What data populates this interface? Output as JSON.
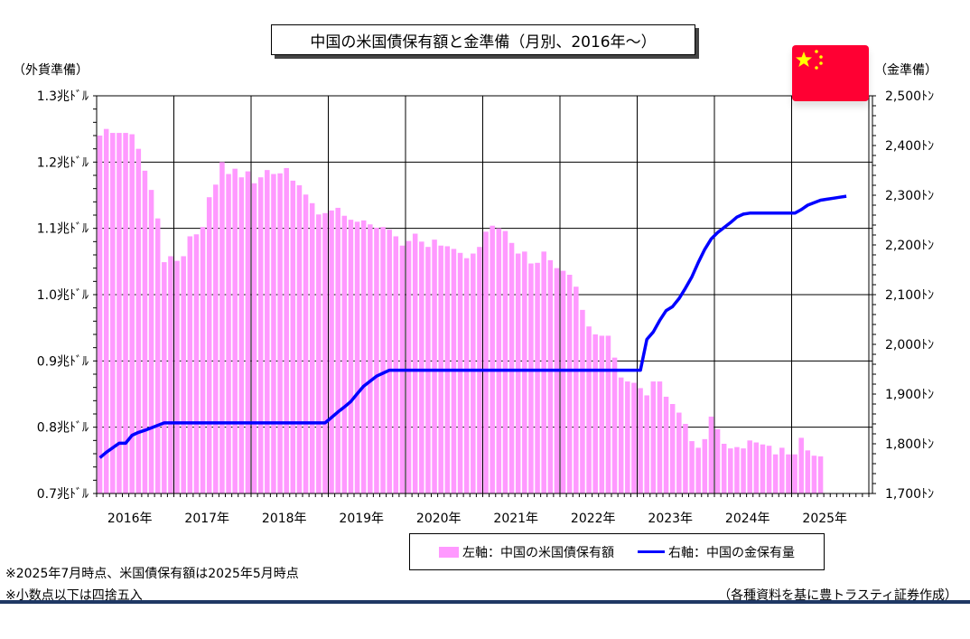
{
  "title": "中国の米国債保有額と金準備（月別、2016年～）",
  "left_axis_unit": "（外貨準備）",
  "right_axis_unit": "（金準備）",
  "legend": {
    "bar_label": "左軸：中国の米国債保有額",
    "line_label": "右軸：中国の金保有量"
  },
  "notes": [
    "※2025年7月時点、米国債保有額は2025年5月時点",
    "※小数点以下は四捨五入"
  ],
  "source": "（各種資料を基に豊トラスティ証券作成）",
  "colors": {
    "bar": "#FF99FF",
    "line": "#0000FF",
    "flag_red": "#FF0033",
    "flag_star": "#FFFF00",
    "rule": "#1F3864"
  },
  "flag_icon": "china-flag-icon",
  "chart_data": {
    "type": "bar",
    "grid": true,
    "x_categories": [
      "2016年",
      "2017年",
      "2018年",
      "2019年",
      "2020年",
      "2021年",
      "2022年",
      "2023年",
      "2024年",
      "2025年"
    ],
    "left_axis": {
      "ylim": [
        0.7,
        1.3
      ],
      "ticks": [
        0.7,
        0.8,
        0.9,
        1.0,
        1.1,
        1.2,
        1.3
      ],
      "tick_labels": [
        "0.7兆ﾄﾞﾙ",
        "0.8兆ﾄﾞﾙ",
        "0.9兆ﾄﾞﾙ",
        "1.0兆ﾄﾞﾙ",
        "1.1兆ﾄﾞﾙ",
        "1.2兆ﾄﾞﾙ",
        "1.3兆ﾄﾞﾙ"
      ]
    },
    "right_axis": {
      "ylim": [
        1700,
        2500
      ],
      "ticks": [
        1700,
        1800,
        1900,
        2000,
        2100,
        2200,
        2300,
        2400,
        2500
      ],
      "tick_labels": [
        "1,700ﾄﾝ",
        "1,800ﾄﾝ",
        "1,900ﾄﾝ",
        "2,000ﾄﾝ",
        "2,100ﾄﾝ",
        "2,200ﾄﾝ",
        "2,300ﾄﾝ",
        "2,400ﾄﾝ",
        "2,500ﾄﾝ"
      ]
    },
    "series": [
      {
        "name": "左軸：中国の米国債保有額",
        "type": "bar",
        "axis": "left",
        "start": "2016-01",
        "values": [
          1.24,
          1.25,
          1.244,
          1.244,
          1.244,
          1.242,
          1.22,
          1.187,
          1.158,
          1.115,
          1.049,
          1.058,
          1.051,
          1.058,
          1.088,
          1.091,
          1.102,
          1.147,
          1.166,
          1.2,
          1.182,
          1.19,
          1.177,
          1.186,
          1.168,
          1.177,
          1.188,
          1.182,
          1.183,
          1.191,
          1.172,
          1.165,
          1.151,
          1.138,
          1.121,
          1.123,
          1.127,
          1.131,
          1.119,
          1.113,
          1.11,
          1.112,
          1.106,
          1.101,
          1.102,
          1.098,
          1.088,
          1.074,
          1.081,
          1.092,
          1.08,
          1.072,
          1.083,
          1.074,
          1.073,
          1.069,
          1.063,
          1.055,
          1.062,
          1.072,
          1.095,
          1.104,
          1.1,
          1.096,
          1.078,
          1.062,
          1.065,
          1.047,
          1.048,
          1.065,
          1.052,
          1.04,
          1.036,
          1.03,
          1.012,
          0.977,
          0.952,
          0.94,
          0.938,
          0.938,
          0.905,
          0.875,
          0.869,
          0.867,
          0.859,
          0.848,
          0.869,
          0.869,
          0.846,
          0.835,
          0.822,
          0.805,
          0.779,
          0.769,
          0.782,
          0.816,
          0.797,
          0.775,
          0.768,
          0.77,
          0.768,
          0.78,
          0.777,
          0.774,
          0.772,
          0.759,
          0.769,
          0.759,
          0.759,
          0.784,
          0.765,
          0.757,
          0.756
        ]
      },
      {
        "name": "右軸：中国の金保有量",
        "type": "line",
        "axis": "right",
        "start": "2016-01",
        "values": [
          1772,
          1783,
          1792,
          1801,
          1801,
          1817,
          1823,
          1827,
          1832,
          1837,
          1842,
          1842,
          1842,
          1842,
          1842,
          1842,
          1842,
          1842,
          1842,
          1842,
          1842,
          1842,
          1842,
          1842,
          1842,
          1842,
          1842,
          1842,
          1842,
          1842,
          1842,
          1842,
          1842,
          1842,
          1842,
          1842,
          1853,
          1864,
          1874,
          1885,
          1901,
          1916,
          1926,
          1936,
          1942,
          1948,
          1948,
          1948,
          1948,
          1948,
          1948,
          1948,
          1948,
          1948,
          1948,
          1948,
          1948,
          1948,
          1948,
          1948,
          1948,
          1948,
          1948,
          1948,
          1948,
          1948,
          1948,
          1948,
          1948,
          1948,
          1948,
          1948,
          1948,
          1948,
          1948,
          1948,
          1948,
          1948,
          1948,
          1948,
          1948,
          1948,
          1948,
          1948,
          1948,
          2010,
          2025,
          2048,
          2068,
          2076,
          2092,
          2113,
          2136,
          2165,
          2191,
          2212,
          2225,
          2235,
          2245,
          2256,
          2262,
          2264,
          2264,
          2264,
          2264,
          2264,
          2264,
          2264,
          2264,
          2271,
          2280,
          2285,
          2290,
          2292,
          2294,
          2296,
          2298
        ]
      }
    ]
  }
}
